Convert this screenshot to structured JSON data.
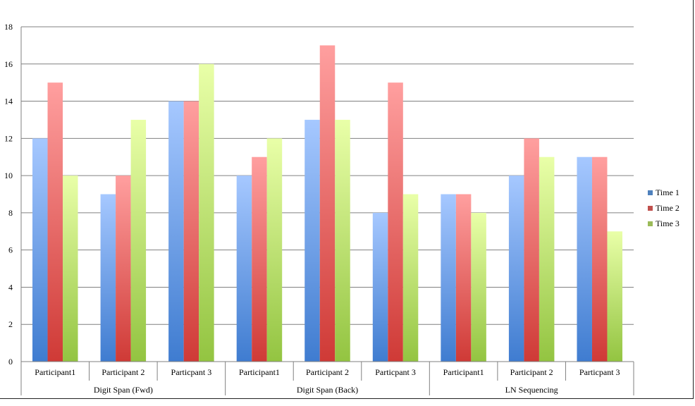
{
  "chart_data": {
    "type": "bar",
    "title": "",
    "xlabel": "",
    "ylabel": "",
    "ylim": [
      0,
      18
    ],
    "yticks": [
      0,
      2,
      4,
      6,
      8,
      10,
      12,
      14,
      16,
      18
    ],
    "grid": true,
    "legend_position": "right",
    "groups": [
      {
        "label": "Digit Span (Fwd)",
        "categories": [
          "Participant1",
          "Participant 2",
          "Particpant 3"
        ]
      },
      {
        "label": "Digit Span (Back)",
        "categories": [
          "Participant1",
          "Participant 2",
          "Particpant 3"
        ]
      },
      {
        "label": "LN Sequencing",
        "categories": [
          "Participant1",
          "Participant 2",
          "Particpant 3"
        ]
      }
    ],
    "series": [
      {
        "name": "Time 1",
        "color": "#4f81bd",
        "values": [
          12,
          9,
          14,
          10,
          13,
          8,
          9,
          10,
          11
        ]
      },
      {
        "name": "Time 2",
        "color": "#c0504d",
        "values": [
          15,
          10,
          14,
          11,
          17,
          15,
          9,
          12,
          11
        ]
      },
      {
        "name": "Time 3",
        "color": "#9bbb59",
        "values": [
          10,
          13,
          16,
          12,
          13,
          9,
          8,
          11,
          7
        ]
      }
    ]
  }
}
